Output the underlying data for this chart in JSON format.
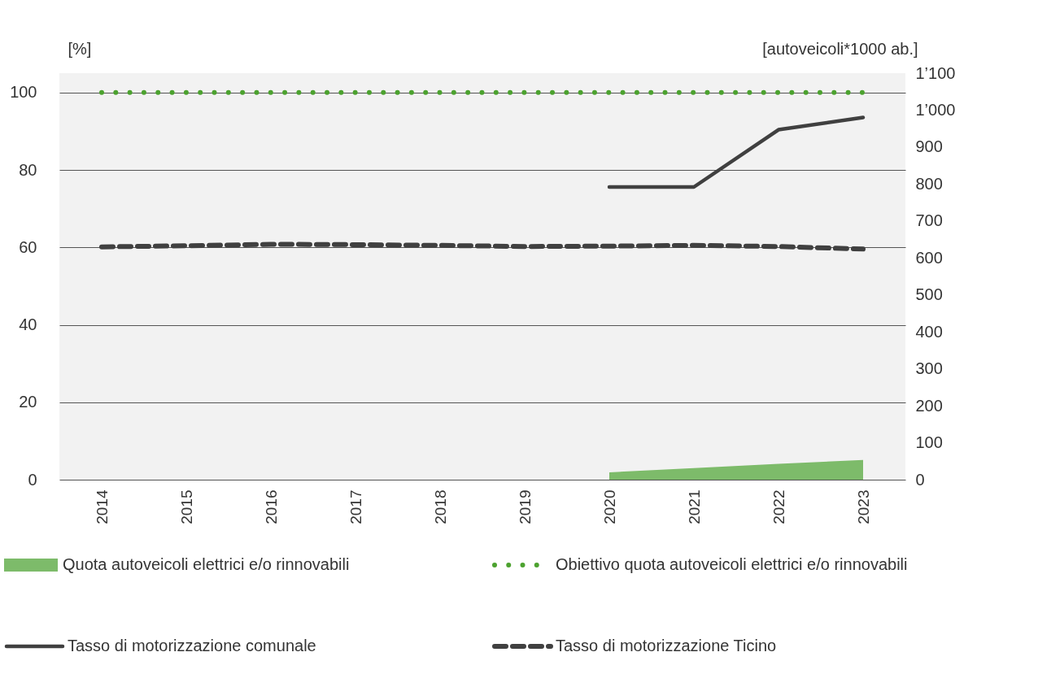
{
  "chart_data": {
    "type": "line",
    "categories": [
      "2014",
      "2015",
      "2016",
      "2017",
      "2018",
      "2019",
      "2020",
      "2021",
      "2022",
      "2023"
    ],
    "ylabel": "[%]",
    "y2label": "[autoveicoli*1000 ab.]",
    "ylim": [
      0,
      105
    ],
    "yticks": [
      0,
      20,
      40,
      60,
      80,
      100
    ],
    "y2lim": [
      0,
      1100
    ],
    "y2ticks": [
      0,
      100,
      200,
      300,
      400,
      500,
      600,
      700,
      800,
      900,
      {
        "value": 1000,
        "label": "1’000"
      },
      {
        "value": 1100,
        "label": "1’100"
      }
    ],
    "grid": "y",
    "legend": "bottom",
    "series": [
      {
        "name": "Quota autoveicoli elettrici e/o rinnovabili",
        "type": "area",
        "color": "#7dbb6a",
        "values": [
          null,
          null,
          null,
          null,
          null,
          null,
          1.9,
          3.0,
          4.1,
          5.1
        ]
      },
      {
        "name": "Obiettivo quota autoveicoli elettrici e/o rinnovabili",
        "line_style": "dotted",
        "color": "#4ca22f",
        "values": [
          100,
          100,
          100,
          100,
          100,
          100,
          100,
          100,
          100,
          100
        ]
      },
      {
        "name": "Tasso di motorizzazione comunale",
        "line_style": "solid",
        "axis": "y2",
        "color": "#404040",
        "values": [
          null,
          null,
          null,
          null,
          null,
          null,
          792,
          792,
          947,
          980
        ]
      },
      {
        "name": "Tasso di motorizzazione Ticino",
        "line_style": "dashed",
        "axis": "y2",
        "color": "#404040",
        "values": [
          630,
          633,
          637,
          636,
          634,
          631,
          632,
          634,
          631,
          624
        ]
      }
    ]
  }
}
